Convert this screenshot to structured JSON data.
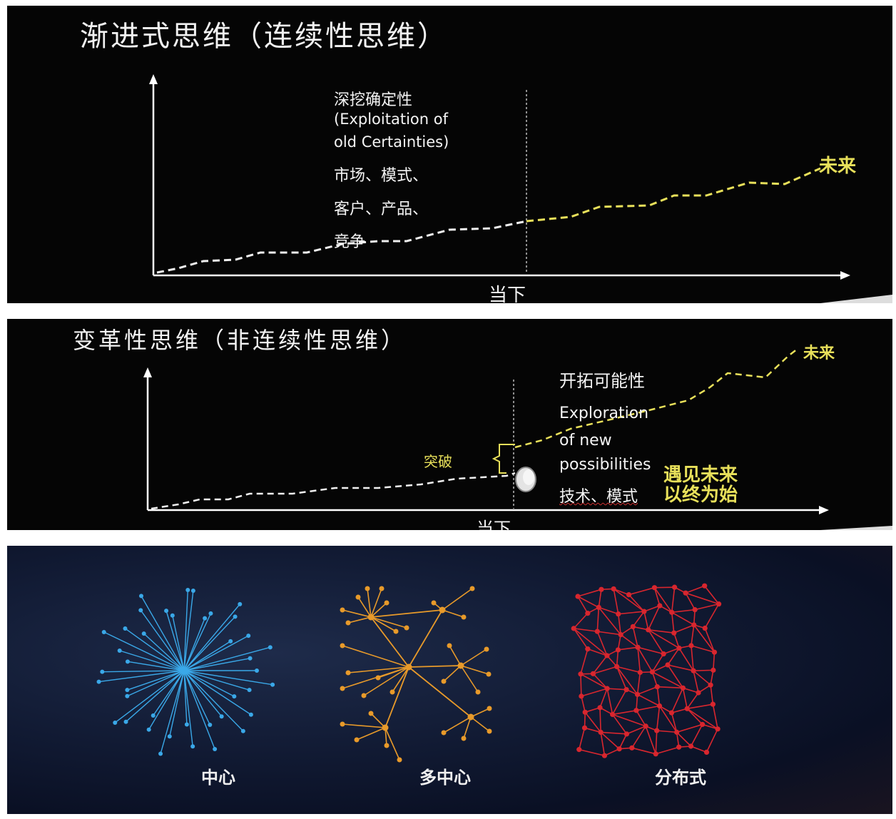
{
  "panel1": {
    "title": "渐进式思维（连续性思维）",
    "label_cn": "深挖确定性",
    "label_en_1": "(Exploitation of",
    "label_en_2": "old Certainties)",
    "items_1": "市场、模式、",
    "items_2": "客户、产品、",
    "items_3": "竞争",
    "future": "未来",
    "now": "当下"
  },
  "panel2": {
    "title": "变革性思维（非连续性思维）",
    "label_cn": "开拓可能性",
    "label_en_1": "Exploration",
    "label_en_2": "of new",
    "label_en_3": "possibilities",
    "items": "技术、模式",
    "breakthrough": "突破",
    "slogan_1": "遇见未来",
    "slogan_2": "以终为始",
    "future": "未来",
    "now": "当下"
  },
  "panel3": {
    "network_1": "中心",
    "network_2": "多中心",
    "network_3": "分布式",
    "colors": {
      "central": "#3aa8e8",
      "decentral": "#e89a2a",
      "distributed": "#d8262e"
    }
  },
  "colors": {
    "past_line": "#f0f0f0",
    "future_line": "#e8e05a"
  }
}
